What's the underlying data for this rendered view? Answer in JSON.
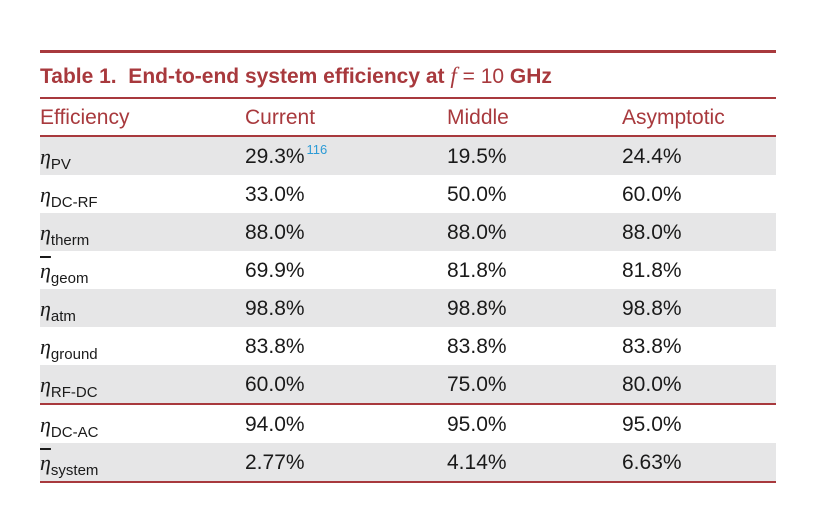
{
  "title": {
    "label": "Table 1.  End-to-end system efficiency at ",
    "variable": "f",
    "equals": " = 10 ",
    "unit": "GHz"
  },
  "table": {
    "header": [
      "Efficiency",
      "Current",
      "Middle",
      "Asymptotic"
    ],
    "groups": [
      [
        {
          "symbol": "η",
          "subscript": "PV",
          "overline": false,
          "cells": [
            "29.3%",
            "19.5%",
            "24.4%"
          ],
          "note": "116"
        },
        {
          "symbol": "η",
          "subscript": "DC-RF",
          "overline": false,
          "cells": [
            "33.0%",
            "50.0%",
            "60.0%"
          ]
        },
        {
          "symbol": "η",
          "subscript": "therm",
          "overline": false,
          "cells": [
            "88.0%",
            "88.0%",
            "88.0%"
          ]
        },
        {
          "symbol": "η",
          "subscript": "geom",
          "overline": true,
          "cells": [
            "69.9%",
            "81.8%",
            "81.8%"
          ]
        },
        {
          "symbol": "η",
          "subscript": "atm",
          "overline": false,
          "cells": [
            "98.8%",
            "98.8%",
            "98.8%"
          ]
        },
        {
          "symbol": "η",
          "subscript": "ground",
          "overline": false,
          "cells": [
            "83.8%",
            "83.8%",
            "83.8%"
          ]
        },
        {
          "symbol": "η",
          "subscript": "RF-DC",
          "overline": false,
          "cells": [
            "60.0%",
            "75.0%",
            "80.0%"
          ]
        }
      ],
      [
        {
          "symbol": "η",
          "subscript": "DC-AC",
          "overline": false,
          "cells": [
            "94.0%",
            "95.0%",
            "95.0%"
          ]
        },
        {
          "symbol": "η",
          "subscript": "system",
          "overline": true,
          "cells": [
            "2.77%",
            "4.14%",
            "6.63%"
          ]
        }
      ]
    ]
  }
}
